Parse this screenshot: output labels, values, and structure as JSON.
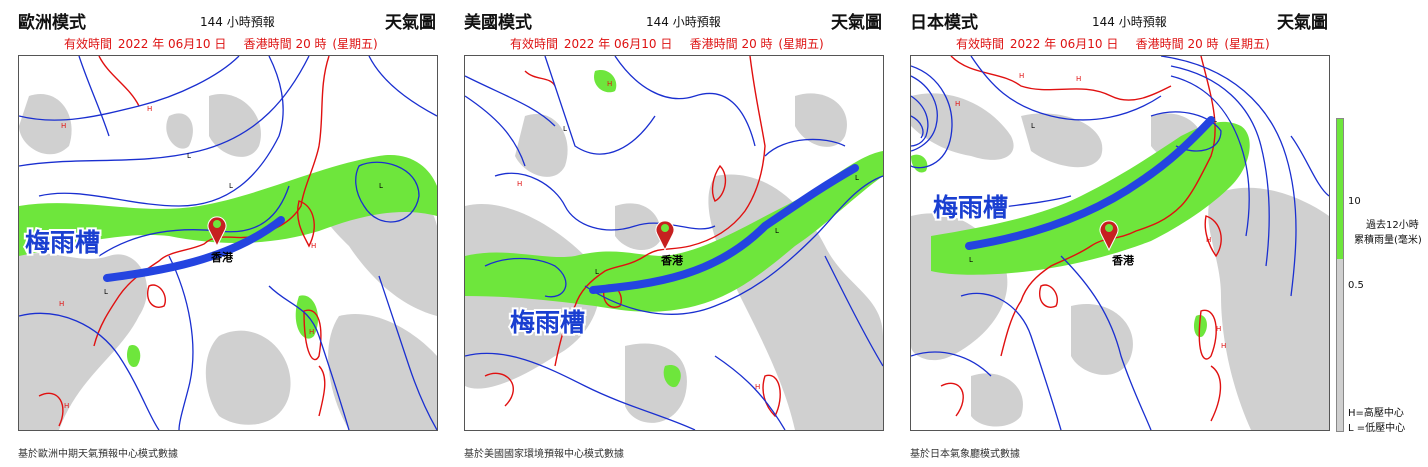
{
  "header": {
    "hours": "144 小時預報",
    "chart_type": "天氣圖",
    "valid_prefix": "有效時間",
    "valid_date": "2022 年 06月10 日",
    "hk_time": "香港時間 20 時",
    "weekday": "(星期五)"
  },
  "panels": [
    {
      "model": "歐洲模式",
      "source": "基於歐洲中期天氣預報中心模式數據",
      "trough_label": "梅雨槽",
      "hk_label": "香港"
    },
    {
      "model": "美國模式",
      "source": "基於美國國家環境預報中心模式數據",
      "trough_label": "梅雨槽",
      "hk_label": "香港"
    },
    {
      "model": "日本模式",
      "source": "基於日本氣象廳模式數據",
      "trough_label": "梅雨槽",
      "hk_label": "香港"
    }
  ],
  "legend": {
    "title_line1": "過去12小時",
    "title_line2": "累積雨量(毫米)",
    "tick_high": "10",
    "tick_low": "0.5",
    "high_center": "H=高壓中心",
    "low_center": "L =低壓中心"
  },
  "colors": {
    "isobar": "#1a2fd0",
    "coastline": "#e01010",
    "rain_light": "#cfcfcf",
    "rain_heavy": "#6ee63c",
    "trough": "#2444e0"
  }
}
